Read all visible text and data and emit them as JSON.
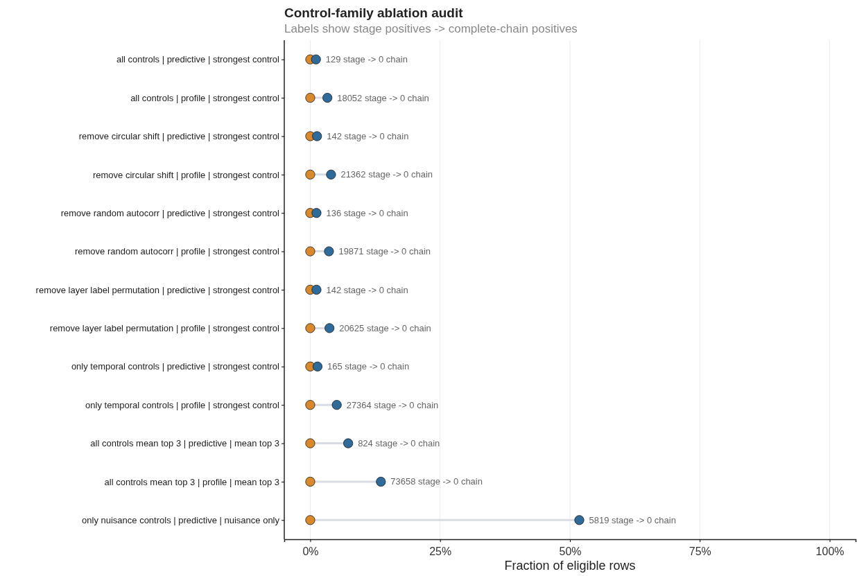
{
  "chart_data": {
    "type": "lollipop",
    "title": "Control-family ablation audit",
    "subtitle": "Labels show stage positives -> complete-chain positives",
    "xlabel": "Fraction of eligible rows",
    "orientation": "horizontal",
    "categories": [
      "all controls | predictive | strongest control",
      "all controls | profile | strongest control",
      "remove circular shift | predictive | strongest control",
      "remove circular shift | profile | strongest control",
      "remove random autocorr | predictive | strongest control",
      "remove random autocorr | profile | strongest control",
      "remove layer label permutation | predictive | strongest control",
      "remove layer label permutation | profile | strongest control",
      "only temporal controls | predictive | strongest control",
      "only temporal controls | profile | strongest control",
      "all controls mean top 3 | predictive | mean top 3",
      "all controls mean top 3 | profile | mean top 3",
      "only nuisance controls | predictive | nuisance only"
    ],
    "series": [
      {
        "color": "#2e6a9a",
        "values": [
          1.1,
          3.3,
          1.3,
          4.0,
          1.2,
          3.6,
          1.2,
          3.7,
          1.4,
          5.1,
          7.3,
          13.6,
          51.8
        ],
        "value_labels": [
          "129 stage -> 0 chain",
          "18052 stage -> 0 chain",
          "142 stage -> 0 chain",
          "21362 stage -> 0 chain",
          "136 stage -> 0 chain",
          "19871 stage -> 0 chain",
          "142 stage -> 0 chain",
          "20625 stage -> 0 chain",
          "165 stage -> 0 chain",
          "27364 stage -> 0 chain",
          "824 stage -> 0 chain",
          "73658 stage -> 0 chain",
          "5819 stage -> 0 chain"
        ]
      },
      {
        "type": "scatter",
        "color": "#d9892b",
        "values": [
          0,
          0,
          0,
          0,
          0,
          0,
          0,
          0,
          0,
          0,
          0,
          0,
          0
        ]
      }
    ],
    "xlim": [
      -5,
      105
    ],
    "xticks": [
      {
        "value": 0,
        "label": "0%"
      },
      {
        "value": 25,
        "label": "25%"
      },
      {
        "value": 50,
        "label": "50%"
      },
      {
        "value": 75,
        "label": "75%"
      },
      {
        "value": 100,
        "label": "100%"
      }
    ],
    "grid": "x",
    "marker": "circle"
  }
}
